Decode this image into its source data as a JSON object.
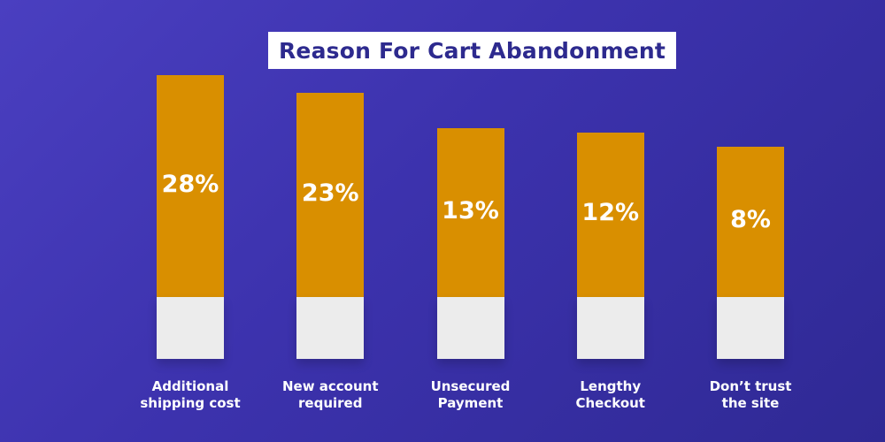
{
  "chart_data": {
    "type": "bar",
    "title": "Reason For Cart Abandonment",
    "categories": [
      [
        "Additional",
        "shipping cost"
      ],
      [
        "New account",
        "required"
      ],
      [
        "Unsecured",
        "Payment"
      ],
      [
        "Lengthy",
        "Checkout"
      ],
      [
        "Don’t trust",
        "the site"
      ]
    ],
    "values": [
      28,
      23,
      13,
      12,
      8
    ],
    "value_labels": [
      "28%",
      "23%",
      "13%",
      "12%",
      "8%"
    ],
    "unit": "%",
    "colors": {
      "bar": "#d98f00",
      "bar_base": "#ececec",
      "title_text": "#2d2a8e"
    }
  }
}
